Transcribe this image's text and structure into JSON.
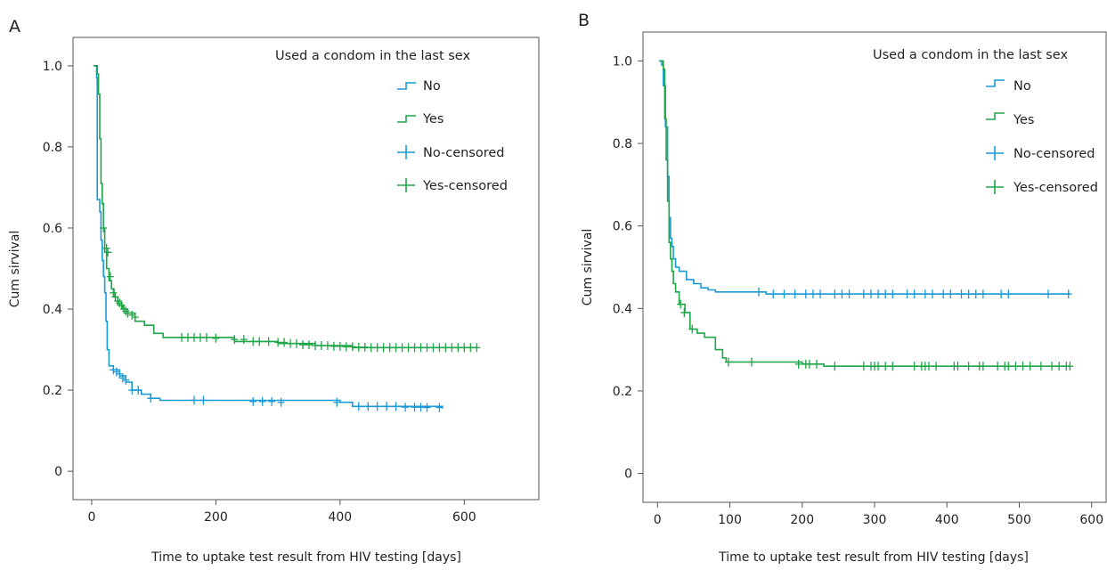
{
  "colors": {
    "no": "#1a9ad6",
    "yes": "#1fa548",
    "axis": "#555555",
    "text": "#222222"
  },
  "chart_data": [
    {
      "panel": "A",
      "type": "line",
      "xlabel": "Time to uptake test result from HIV testing [days]",
      "ylabel": "Cum sirvival",
      "xlim": [
        -30,
        720
      ],
      "ylim": [
        -0.07,
        1.07
      ],
      "xticks": [
        0,
        200,
        400,
        600
      ],
      "yticks": [
        0,
        0.2,
        0.4,
        0.6,
        0.8,
        1.0
      ],
      "ytick_labels": [
        "0",
        "0.2",
        "0.4",
        "0.6",
        "0.8",
        "1.0"
      ],
      "legend": {
        "title": "Used a condom in the last sex",
        "entries": [
          "No",
          "Yes",
          "No-censored",
          "Yes-censored"
        ],
        "placement": "top-right"
      },
      "series": [
        {
          "name": "No",
          "color_key": "no",
          "steps": [
            [
              3,
              1.0
            ],
            [
              8,
              0.97
            ],
            [
              9,
              0.67
            ],
            [
              13,
              0.64
            ],
            [
              15,
              0.57
            ],
            [
              17,
              0.52
            ],
            [
              19,
              0.48
            ],
            [
              21,
              0.44
            ],
            [
              23,
              0.37
            ],
            [
              25,
              0.3
            ],
            [
              28,
              0.26
            ],
            [
              35,
              0.25
            ],
            [
              45,
              0.235
            ],
            [
              55,
              0.22
            ],
            [
              65,
              0.2
            ],
            [
              80,
              0.19
            ],
            [
              95,
              0.18
            ],
            [
              110,
              0.175
            ],
            [
              400,
              0.17
            ],
            [
              420,
              0.16
            ],
            [
              565,
              0.155
            ]
          ],
          "censored": [
            [
              35,
              0.25
            ],
            [
              40,
              0.245
            ],
            [
              45,
              0.24
            ],
            [
              50,
              0.23
            ],
            [
              55,
              0.225
            ],
            [
              65,
              0.2
            ],
            [
              75,
              0.2
            ],
            [
              95,
              0.18
            ],
            [
              165,
              0.175
            ],
            [
              180,
              0.175
            ],
            [
              260,
              0.172
            ],
            [
              275,
              0.172
            ],
            [
              290,
              0.172
            ],
            [
              305,
              0.17
            ],
            [
              395,
              0.17
            ],
            [
              430,
              0.16
            ],
            [
              445,
              0.16
            ],
            [
              460,
              0.16
            ],
            [
              475,
              0.16
            ],
            [
              490,
              0.16
            ],
            [
              505,
              0.158
            ],
            [
              520,
              0.158
            ],
            [
              530,
              0.158
            ],
            [
              540,
              0.157
            ],
            [
              560,
              0.157
            ]
          ]
        },
        {
          "name": "Yes",
          "color_key": "yes",
          "steps": [
            [
              4,
              1.0
            ],
            [
              9,
              0.98
            ],
            [
              11,
              0.93
            ],
            [
              13,
              0.82
            ],
            [
              15,
              0.71
            ],
            [
              17,
              0.66
            ],
            [
              19,
              0.6
            ],
            [
              21,
              0.54
            ],
            [
              24,
              0.5
            ],
            [
              28,
              0.47
            ],
            [
              32,
              0.45
            ],
            [
              36,
              0.43
            ],
            [
              42,
              0.41
            ],
            [
              50,
              0.4
            ],
            [
              58,
              0.39
            ],
            [
              70,
              0.37
            ],
            [
              85,
              0.36
            ],
            [
              100,
              0.34
            ],
            [
              115,
              0.33
            ],
            [
              180,
              0.33
            ],
            [
              230,
              0.32
            ],
            [
              300,
              0.315
            ],
            [
              360,
              0.31
            ],
            [
              420,
              0.305
            ],
            [
              620,
              0.305
            ]
          ],
          "censored": [
            [
              19,
              0.6
            ],
            [
              24,
              0.55
            ],
            [
              26,
              0.54
            ],
            [
              30,
              0.48
            ],
            [
              35,
              0.44
            ],
            [
              38,
              0.43
            ],
            [
              42,
              0.42
            ],
            [
              45,
              0.415
            ],
            [
              48,
              0.41
            ],
            [
              52,
              0.4
            ],
            [
              55,
              0.395
            ],
            [
              58,
              0.39
            ],
            [
              65,
              0.385
            ],
            [
              70,
              0.38
            ],
            [
              145,
              0.33
            ],
            [
              155,
              0.33
            ],
            [
              165,
              0.33
            ],
            [
              175,
              0.33
            ],
            [
              185,
              0.33
            ],
            [
              200,
              0.328
            ],
            [
              230,
              0.325
            ],
            [
              245,
              0.325
            ],
            [
              260,
              0.32
            ],
            [
              270,
              0.32
            ],
            [
              285,
              0.32
            ],
            [
              300,
              0.318
            ],
            [
              310,
              0.318
            ],
            [
              320,
              0.315
            ],
            [
              330,
              0.315
            ],
            [
              340,
              0.312
            ],
            [
              350,
              0.312
            ],
            [
              360,
              0.31
            ],
            [
              370,
              0.31
            ],
            [
              380,
              0.31
            ],
            [
              390,
              0.308
            ],
            [
              400,
              0.308
            ],
            [
              410,
              0.307
            ],
            [
              420,
              0.307
            ],
            [
              430,
              0.306
            ],
            [
              440,
              0.306
            ],
            [
              450,
              0.305
            ],
            [
              460,
              0.305
            ],
            [
              470,
              0.305
            ],
            [
              480,
              0.305
            ],
            [
              490,
              0.305
            ],
            [
              500,
              0.305
            ],
            [
              510,
              0.305
            ],
            [
              520,
              0.305
            ],
            [
              530,
              0.305
            ],
            [
              540,
              0.305
            ],
            [
              550,
              0.305
            ],
            [
              560,
              0.305
            ],
            [
              570,
              0.305
            ],
            [
              580,
              0.305
            ],
            [
              590,
              0.305
            ],
            [
              600,
              0.305
            ],
            [
              610,
              0.305
            ],
            [
              620,
              0.305
            ]
          ]
        }
      ]
    },
    {
      "panel": "B",
      "type": "line",
      "xlabel": "Time to uptake test result from HIV testing [days]",
      "ylabel": "Cum sirvival",
      "xlim": [
        -20,
        620
      ],
      "ylim": [
        -0.07,
        1.07
      ],
      "xticks": [
        0,
        100,
        200,
        300,
        400,
        500,
        600
      ],
      "yticks": [
        0,
        0.2,
        0.4,
        0.6,
        0.8,
        1.0
      ],
      "ytick_labels": [
        "0",
        "0.2",
        "0.4",
        "0.6",
        "0.8",
        "1.0"
      ],
      "legend": {
        "title": "Used a condom in the last sex",
        "entries": [
          "No",
          "Yes",
          "No-censored",
          "Yes-censored"
        ],
        "placement": "top-right"
      },
      "series": [
        {
          "name": "No",
          "color_key": "no",
          "steps": [
            [
              2,
              1.0
            ],
            [
              6,
              0.99
            ],
            [
              8,
              0.94
            ],
            [
              11,
              0.84
            ],
            [
              14,
              0.72
            ],
            [
              16,
              0.62
            ],
            [
              18,
              0.57
            ],
            [
              20,
              0.55
            ],
            [
              22,
              0.52
            ],
            [
              25,
              0.5
            ],
            [
              30,
              0.49
            ],
            [
              40,
              0.47
            ],
            [
              50,
              0.46
            ],
            [
              60,
              0.45
            ],
            [
              70,
              0.445
            ],
            [
              80,
              0.44
            ],
            [
              150,
              0.435
            ],
            [
              570,
              0.435
            ]
          ],
          "censored": [
            [
              140,
              0.44
            ],
            [
              160,
              0.435
            ],
            [
              175,
              0.435
            ],
            [
              190,
              0.435
            ],
            [
              205,
              0.435
            ],
            [
              215,
              0.435
            ],
            [
              225,
              0.435
            ],
            [
              245,
              0.435
            ],
            [
              255,
              0.435
            ],
            [
              265,
              0.435
            ],
            [
              285,
              0.435
            ],
            [
              295,
              0.435
            ],
            [
              305,
              0.435
            ],
            [
              315,
              0.435
            ],
            [
              325,
              0.435
            ],
            [
              345,
              0.435
            ],
            [
              355,
              0.435
            ],
            [
              370,
              0.435
            ],
            [
              380,
              0.435
            ],
            [
              395,
              0.435
            ],
            [
              405,
              0.435
            ],
            [
              420,
              0.435
            ],
            [
              430,
              0.435
            ],
            [
              440,
              0.435
            ],
            [
              450,
              0.435
            ],
            [
              475,
              0.435
            ],
            [
              485,
              0.435
            ],
            [
              540,
              0.435
            ],
            [
              568,
              0.435
            ]
          ]
        },
        {
          "name": "Yes",
          "color_key": "yes",
          "steps": [
            [
              3,
              1.0
            ],
            [
              8,
              0.98
            ],
            [
              10,
              0.86
            ],
            [
              12,
              0.76
            ],
            [
              14,
              0.66
            ],
            [
              16,
              0.56
            ],
            [
              18,
              0.52
            ],
            [
              20,
              0.49
            ],
            [
              22,
              0.46
            ],
            [
              25,
              0.44
            ],
            [
              30,
              0.41
            ],
            [
              38,
              0.39
            ],
            [
              45,
              0.35
            ],
            [
              55,
              0.34
            ],
            [
              65,
              0.33
            ],
            [
              80,
              0.3
            ],
            [
              90,
              0.28
            ],
            [
              95,
              0.27
            ],
            [
              200,
              0.265
            ],
            [
              230,
              0.26
            ],
            [
              570,
              0.26
            ]
          ],
          "censored": [
            [
              32,
              0.41
            ],
            [
              37,
              0.39
            ],
            [
              48,
              0.35
            ],
            [
              98,
              0.27
            ],
            [
              130,
              0.27
            ],
            [
              195,
              0.265
            ],
            [
              205,
              0.265
            ],
            [
              210,
              0.265
            ],
            [
              220,
              0.265
            ],
            [
              245,
              0.26
            ],
            [
              285,
              0.26
            ],
            [
              295,
              0.26
            ],
            [
              300,
              0.26
            ],
            [
              305,
              0.26
            ],
            [
              315,
              0.26
            ],
            [
              325,
              0.26
            ],
            [
              355,
              0.26
            ],
            [
              365,
              0.26
            ],
            [
              370,
              0.26
            ],
            [
              375,
              0.26
            ],
            [
              385,
              0.26
            ],
            [
              410,
              0.26
            ],
            [
              415,
              0.26
            ],
            [
              430,
              0.26
            ],
            [
              445,
              0.26
            ],
            [
              450,
              0.26
            ],
            [
              470,
              0.26
            ],
            [
              480,
              0.26
            ],
            [
              485,
              0.26
            ],
            [
              495,
              0.26
            ],
            [
              505,
              0.26
            ],
            [
              515,
              0.26
            ],
            [
              530,
              0.26
            ],
            [
              545,
              0.26
            ],
            [
              555,
              0.26
            ],
            [
              565,
              0.26
            ],
            [
              570,
              0.26
            ]
          ]
        }
      ]
    }
  ]
}
